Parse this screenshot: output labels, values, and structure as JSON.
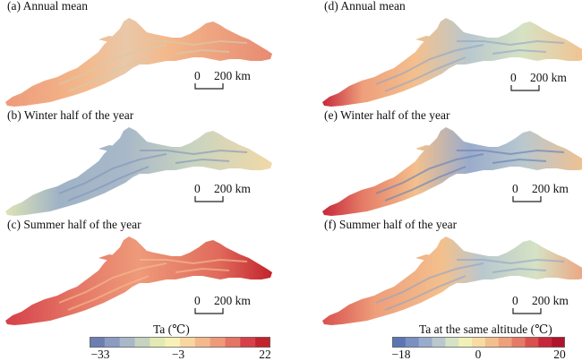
{
  "panels": [
    {
      "label": "(a) Annual mean",
      "field": "ta",
      "season": "annual"
    },
    {
      "label": "(b) Winter half of the year",
      "field": "ta",
      "season": "winter"
    },
    {
      "label": "(c) Summer half of the year",
      "field": "ta",
      "season": "summer"
    },
    {
      "label": "(d) Annual mean",
      "field": "ta_same_altitude",
      "season": "annual"
    },
    {
      "label": "(e) Winter half of the year",
      "field": "ta_same_altitude",
      "season": "winter"
    },
    {
      "label": "(f) Summer half of the year",
      "field": "ta_same_altitude",
      "season": "summer"
    }
  ],
  "scalebar": {
    "zero": "0",
    "distance": "200 km"
  },
  "colorbars": [
    {
      "title": "Ta (℃)",
      "ticks": [
        "−33",
        "−3",
        "22"
      ],
      "colors": [
        "#6d7fb0",
        "#8b9bc2",
        "#a8b8c8",
        "#c5d3bf",
        "#e3e9b3",
        "#f6f1b6",
        "#f7d6a0",
        "#f3b98c",
        "#ee9a7a",
        "#e47464",
        "#d5404a",
        "#c2232c"
      ]
    },
    {
      "title": "Ta at the same altitude (℃)",
      "ticks": [
        "−18",
        "0",
        "20"
      ],
      "colors": [
        "#5b76b3",
        "#7b90c0",
        "#9aaccb",
        "#b9c8ce",
        "#d6e2c4",
        "#f1f0b7",
        "#f6dba2",
        "#f3c08d",
        "#ee9f7b",
        "#e57b66",
        "#d9504f",
        "#c6273a",
        "#b0132c"
      ]
    }
  ]
}
